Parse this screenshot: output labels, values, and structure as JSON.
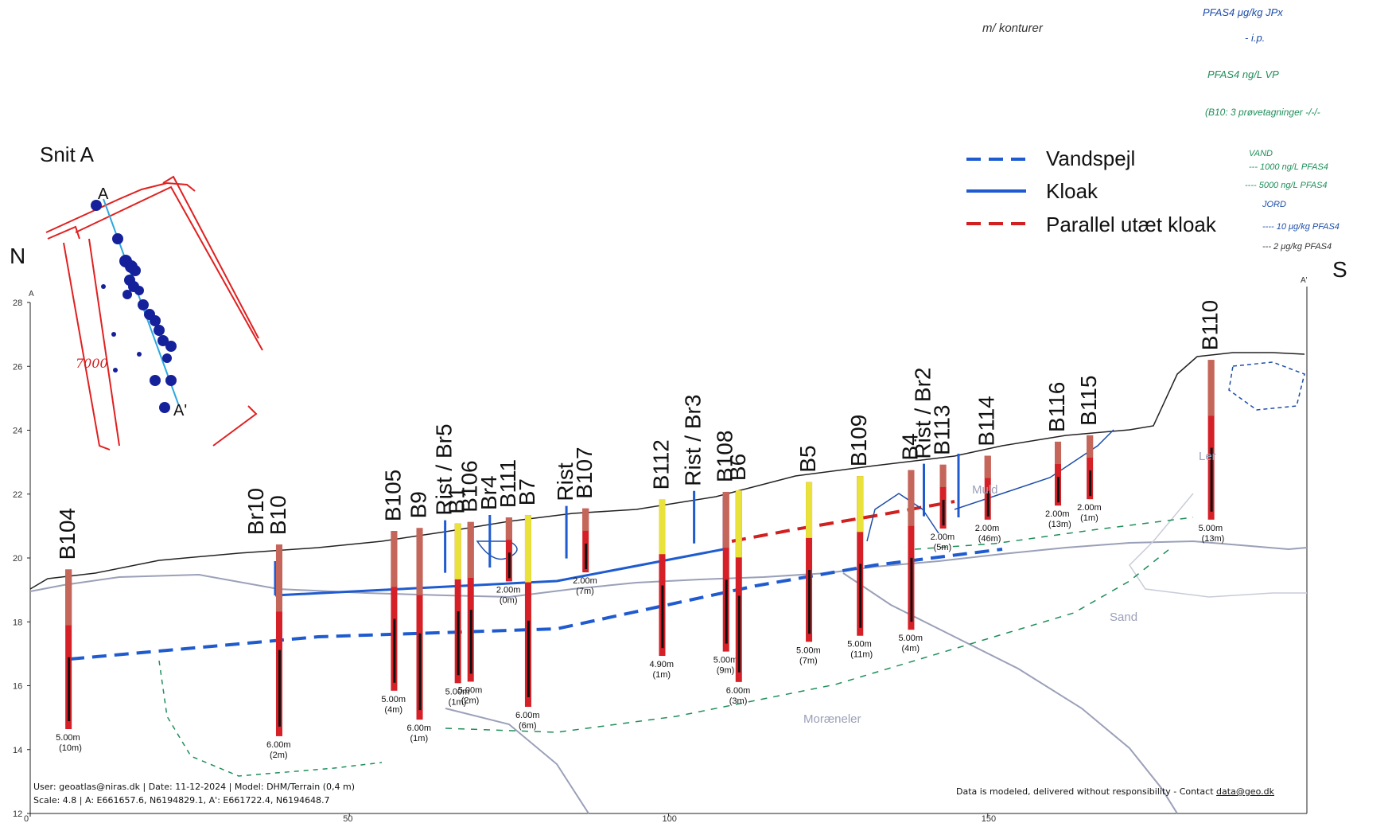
{
  "section_title": "Snit A",
  "north_label": "N",
  "south_label": "S",
  "inset": {
    "point_a": "A",
    "point_a_prime": "A'",
    "red_note": "7000"
  },
  "legend": {
    "items": [
      {
        "label": "Vandspejl",
        "color": "#1f5bd0",
        "style": "dashed"
      },
      {
        "label": "Kloak",
        "color": "#1f5bd0",
        "style": "solid"
      },
      {
        "label": "Parallel utæt kloak",
        "color": "#d02020",
        "style": "dashed"
      }
    ]
  },
  "handwritten_notes": {
    "top_center": "m/ konturer",
    "right_lines": [
      "PFAS4 μg/kg JPx",
      "- i.p.",
      "PFAS4 ng/L VP",
      "(B10: 3 prøvetagninger -/-/-"
    ],
    "vand_title": "VAND",
    "vand_lines": [
      "--- 1000 ng/L PFAS4",
      "---- 5000 ng/L PFAS4"
    ],
    "jord_title": "JORD",
    "jord_lines": [
      "---- 10 μg/kg PFAS4",
      "--- 2 μg/kg PFAS4"
    ]
  },
  "axes": {
    "y_ticks": [
      "28",
      "26",
      "24",
      "22",
      "20",
      "18",
      "16",
      "14",
      "12"
    ],
    "x_ticks": [
      "0",
      "50",
      "100",
      "150"
    ],
    "y_top_label": "A",
    "right_top_label": "A'"
  },
  "boreholes": [
    {
      "name": "B104",
      "x": 6,
      "depth": "5.00m",
      "dist": "(10m)"
    },
    {
      "name": "Br10\nB10",
      "x": 39,
      "depth": "6.00m",
      "dist": "(2m)"
    },
    {
      "name": "B105",
      "x": 57,
      "depth": "5.00m",
      "dist": "(4m)"
    },
    {
      "name": "B9",
      "x": 61,
      "depth": "6.00m",
      "dist": "(1m)"
    },
    {
      "name": "Rist / Br5",
      "x": 65,
      "depth": "",
      "dist": ""
    },
    {
      "name": "B1",
      "x": 67,
      "depth": "5.00m",
      "dist": "(1m)"
    },
    {
      "name": "B106",
      "x": 69,
      "depth": "5.00m",
      "dist": "(2m)"
    },
    {
      "name": "Br4",
      "x": 72,
      "depth": "",
      "dist": ""
    },
    {
      "name": "B111",
      "x": 75,
      "depth": "2.00m",
      "dist": "(0m)"
    },
    {
      "name": "B7",
      "x": 78,
      "depth": "6.00m",
      "dist": "(6m)"
    },
    {
      "name": "Rist",
      "x": 84,
      "depth": "",
      "dist": ""
    },
    {
      "name": "B107",
      "x": 87,
      "depth": "2.00m",
      "dist": "(7m)"
    },
    {
      "name": "B112",
      "x": 99,
      "depth": "4.90m",
      "dist": "(1m)"
    },
    {
      "name": "Rist / Br3",
      "x": 104,
      "depth": "",
      "dist": ""
    },
    {
      "name": "B108",
      "x": 109,
      "depth": "5.00m",
      "dist": "(9m)"
    },
    {
      "name": "B6",
      "x": 111,
      "depth": "6.00m",
      "dist": "(3m)"
    },
    {
      "name": "B5",
      "x": 122,
      "depth": "5.00m",
      "dist": "(7m)"
    },
    {
      "name": "B109",
      "x": 130,
      "depth": "5.00m",
      "dist": "(11m)"
    },
    {
      "name": "B4",
      "x": 138,
      "depth": "5.00m",
      "dist": "(4m)"
    },
    {
      "name": "Rist / Br2",
      "x": 140,
      "depth": "",
      "dist": ""
    },
    {
      "name": "B113",
      "x": 143,
      "depth": "2.00m",
      "dist": "(5m)"
    },
    {
      "name": "B114",
      "x": 150,
      "depth": "2.00m",
      "dist": "(46m)"
    },
    {
      "name": "B116",
      "x": 161,
      "depth": "2.00m",
      "dist": "(13m)"
    },
    {
      "name": "B115",
      "x": 166,
      "depth": "2.00m",
      "dist": "(1m)"
    },
    {
      "name": "B110",
      "x": 185,
      "depth": "5.00m",
      "dist": "(13m)"
    }
  ],
  "soil_labels": [
    "Ler",
    "Muld",
    "Sand",
    "Moræneler"
  ],
  "footer": {
    "left_line1": "User: geoatlas@niras.dk | Date: 11-12-2024 | Model: DHM/Terrain (0,4 m)",
    "left_line2": "Scale: 4.8 | A: E661657.6, N6194829.1, A': E661722.4, N6194648.7",
    "right_text": "Data is modeled, delivered without responsibility - Contact",
    "right_link": "data@geo.dk"
  }
}
